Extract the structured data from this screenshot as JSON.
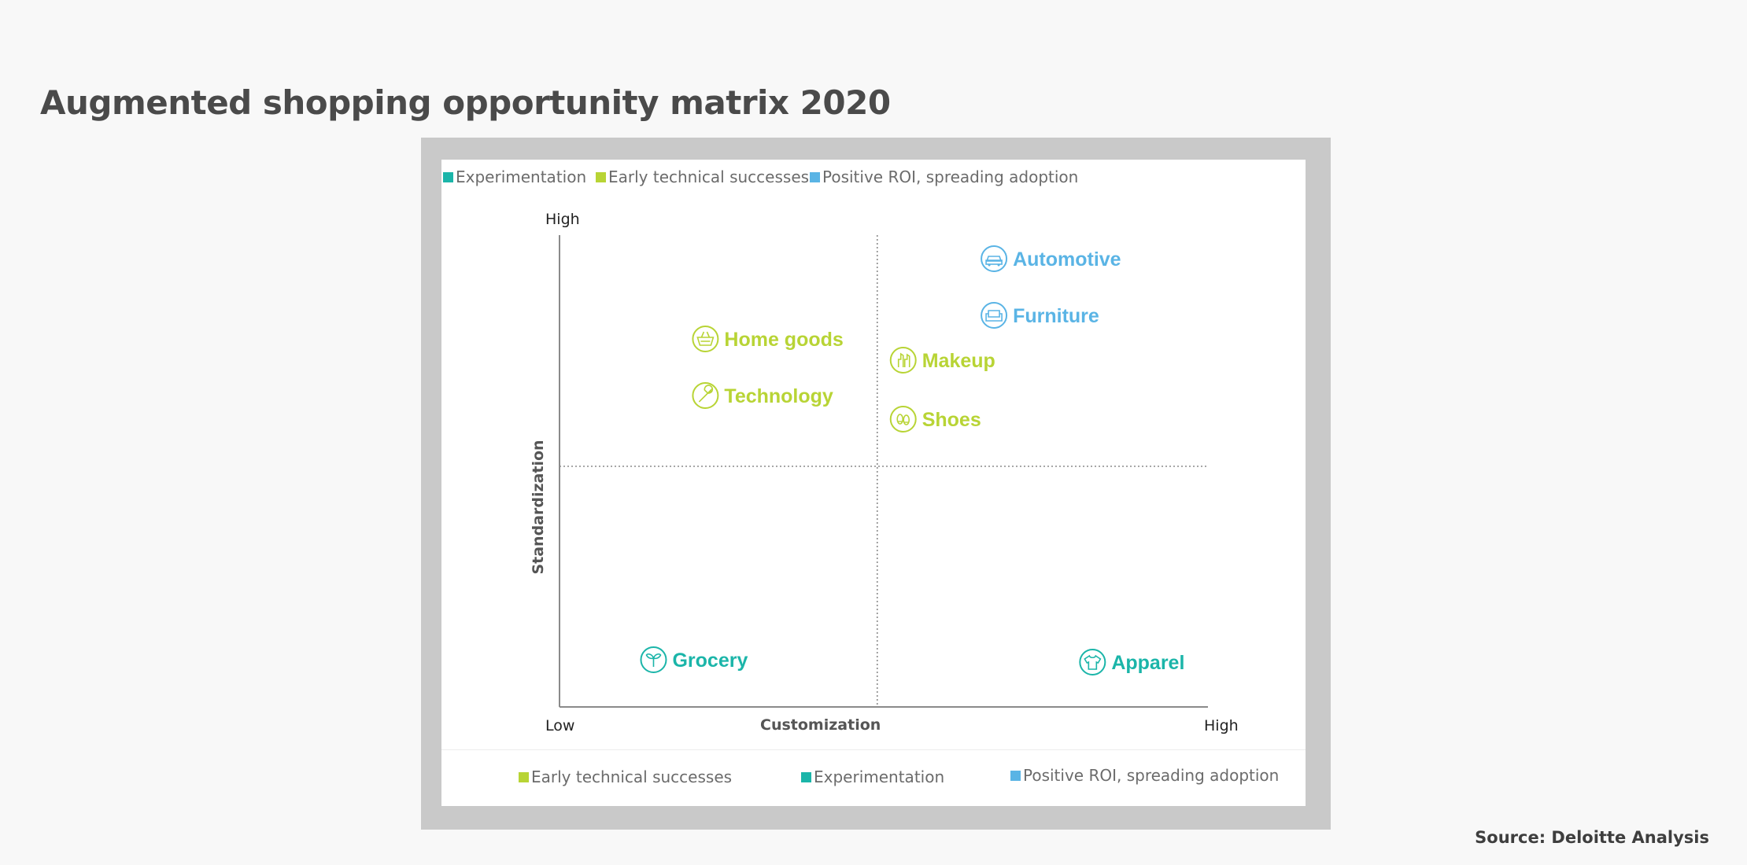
{
  "page": {
    "title": "Augmented shopping opportunity matrix 2020",
    "source": "Source: Deloitte Analysis"
  },
  "colors": {
    "experimentation": "#1bb5a9",
    "early": "#b8d435",
    "positive": "#5ab4e5",
    "frame": "#c9c9c9",
    "axis": "#8a8a8a"
  },
  "legend_top": [
    {
      "label": "Experimentation",
      "color": "#1bb5a9"
    },
    {
      "label": "Early technical successes",
      "color": "#b8d435"
    },
    {
      "label": "Positive ROI, spreading adoption",
      "color": "#5ab4e5"
    }
  ],
  "legend_bottom": [
    {
      "label": "Early technical successes",
      "color": "#b8d435"
    },
    {
      "label": "Experimentation",
      "color": "#1bb5a9"
    },
    {
      "label": "Positive ROI, spreading adoption",
      "color": "#5ab4e5"
    }
  ],
  "chart_data": {
    "type": "scatter",
    "title": "Augmented shopping opportunity matrix 2020",
    "xlabel": "Customization",
    "ylabel": "Standardization",
    "x_tick_labels": [
      "Low",
      "High"
    ],
    "y_tick_labels": [
      "High"
    ],
    "xlim": [
      0,
      1
    ],
    "ylim": [
      0,
      1
    ],
    "dividers": {
      "x": 0.49,
      "y": 0.51
    },
    "legend_placement": "top-left",
    "points": [
      {
        "label": "Automotive",
        "icon": "car-icon",
        "category": "positive",
        "x": 0.67,
        "y": 0.95
      },
      {
        "label": "Furniture",
        "icon": "sofa-icon",
        "category": "positive",
        "x": 0.67,
        "y": 0.83
      },
      {
        "label": "Home goods",
        "icon": "basket-icon",
        "category": "early",
        "x": 0.225,
        "y": 0.78
      },
      {
        "label": "Makeup",
        "icon": "lipstick-icon",
        "category": "early",
        "x": 0.53,
        "y": 0.735
      },
      {
        "label": "Technology",
        "icon": "wrench-icon",
        "category": "early",
        "x": 0.225,
        "y": 0.66
      },
      {
        "label": "Shoes",
        "icon": "footprints-icon",
        "category": "early",
        "x": 0.53,
        "y": 0.61
      },
      {
        "label": "Grocery",
        "icon": "plant-icon",
        "category": "experimentation",
        "x": 0.145,
        "y": 0.1
      },
      {
        "label": "Apparel",
        "icon": "shirt-icon",
        "category": "experimentation",
        "x": 0.822,
        "y": 0.095
      }
    ]
  }
}
